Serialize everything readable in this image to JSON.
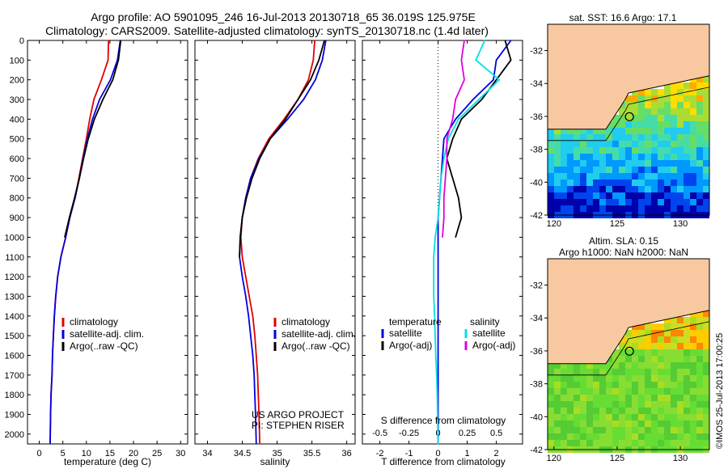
{
  "title": {
    "line1": "Argo profile: AO 5901095_246 16-Jul-2013 20130718_65 36.019S 125.975E",
    "line2": "Climatology: CARS2009. Satellite-adjusted climatology: synTS_20130718.nc (1.4d later)"
  },
  "colors": {
    "clim": "#e00000",
    "sat": "#0000e0",
    "argo": "#000000",
    "sal_sat": "#00e0e0",
    "sal_argo": "#e000e0"
  },
  "chart_data": [
    {
      "type": "line",
      "name": "temperature",
      "xlabel": "temperature (deg C)",
      "xticks": [
        0,
        5,
        10,
        15,
        20,
        25,
        30
      ],
      "xlim": [
        -2.5,
        31.5
      ],
      "ylim": [
        2050,
        0
      ],
      "yticks": [
        0,
        100,
        200,
        300,
        400,
        500,
        600,
        700,
        800,
        900,
        1000,
        1100,
        1200,
        1300,
        1400,
        1500,
        1600,
        1700,
        1800,
        1900,
        2000
      ],
      "legend": [
        "climatology",
        "satellite-adj. clim.",
        "Argo(..raw -QC)"
      ],
      "series": [
        {
          "key": "clim",
          "name": "climatology",
          "x": [
            14.7,
            14.6,
            13.2,
            11.6,
            10.7,
            10.0,
            9.2,
            8.4,
            7.6,
            6.4,
            5.6,
            4.6,
            3.9,
            3.5,
            3.2,
            3.0,
            2.8,
            2.7,
            2.5,
            2.4,
            2.3
          ],
          "y": [
            0,
            100,
            200,
            300,
            400,
            500,
            600,
            700,
            800,
            900,
            1000,
            1100,
            1200,
            1300,
            1400,
            1500,
            1600,
            1700,
            1800,
            1900,
            2050
          ]
        },
        {
          "key": "sat",
          "name": "satellite-adj. clim.",
          "x": [
            17.2,
            16.6,
            15.1,
            12.8,
            11.3,
            10.2,
            9.3,
            8.5,
            7.6,
            6.5,
            5.6,
            4.6,
            3.9,
            3.5,
            3.2,
            3.0,
            2.8,
            2.7,
            2.5,
            2.4,
            2.3
          ],
          "y": [
            0,
            100,
            200,
            300,
            400,
            500,
            600,
            700,
            800,
            900,
            1000,
            1100,
            1200,
            1300,
            1400,
            1500,
            1600,
            1700,
            1800,
            1900,
            2050
          ]
        },
        {
          "key": "argo",
          "name": "Argo(..raw -QC)",
          "x": [
            17.3,
            16.8,
            15.6,
            13.5,
            11.7,
            10.4,
            9.4,
            8.5,
            7.5,
            6.4,
            5.4
          ],
          "y": [
            0,
            100,
            200,
            300,
            400,
            500,
            600,
            700,
            800,
            900,
            1000
          ]
        }
      ]
    },
    {
      "type": "line",
      "name": "salinity",
      "xlabel": "salinity",
      "xticks": [
        34,
        34.5,
        35,
        35.5,
        36
      ],
      "xlim": [
        33.82,
        36.12
      ],
      "ylim": [
        2050,
        0
      ],
      "legend": [
        "climatology",
        "satellite-adj. clim.",
        "Argo(..raw -QC)"
      ],
      "annotation": [
        "US ARGO PROJECT",
        "PI: STEPHEN RISER"
      ],
      "series": [
        {
          "key": "clim",
          "name": "climatology",
          "x": [
            35.54,
            35.52,
            35.45,
            35.3,
            35.1,
            34.88,
            34.73,
            34.62,
            34.55,
            34.5,
            34.48,
            34.5,
            34.55,
            34.6,
            34.65,
            34.68,
            34.7,
            34.72,
            34.73,
            34.74,
            34.75
          ],
          "y": [
            0,
            100,
            200,
            300,
            400,
            500,
            600,
            700,
            800,
            900,
            1000,
            1100,
            1200,
            1300,
            1400,
            1500,
            1600,
            1700,
            1800,
            1900,
            2050
          ]
        },
        {
          "key": "sat",
          "name": "satellite-adj. clim.",
          "x": [
            35.7,
            35.65,
            35.55,
            35.38,
            35.15,
            34.9,
            34.74,
            34.62,
            34.55,
            34.5,
            34.47,
            34.46,
            34.5,
            34.55,
            34.59,
            34.62,
            34.65,
            34.67,
            34.68,
            34.69,
            34.7
          ],
          "y": [
            0,
            100,
            200,
            300,
            400,
            500,
            600,
            700,
            800,
            900,
            1000,
            1100,
            1200,
            1300,
            1400,
            1500,
            1600,
            1700,
            1800,
            1900,
            2050
          ]
        },
        {
          "key": "argo",
          "name": "Argo(..raw -QC)",
          "x": [
            35.68,
            35.6,
            35.48,
            35.3,
            35.12,
            34.9,
            34.75,
            34.64,
            34.56,
            34.5,
            34.47,
            34.46
          ],
          "y": [
            0,
            100,
            200,
            300,
            400,
            500,
            600,
            700,
            800,
            900,
            1000,
            1100
          ]
        }
      ]
    },
    {
      "type": "line",
      "name": "differences",
      "xlabel": "T difference from climatology",
      "xticks": [
        -2,
        -1,
        0,
        1,
        2
      ],
      "xlim": [
        -2.6,
        2.9
      ],
      "x2label": "S difference from climatology",
      "x2ticklabels": [
        "-0.5",
        "-0.25",
        "0",
        "0.25",
        "0.5"
      ],
      "ylim": [
        2050,
        0
      ],
      "legend_titles": [
        "temperature",
        "salinity"
      ],
      "legend": [
        "satellite",
        "Argo(-adj)",
        "satellite",
        "Argo(-adj)"
      ],
      "series": [
        {
          "key": "sat",
          "name": "temperature satellite",
          "x": [
            2.5,
            2.0,
            1.9,
            1.2,
            0.6,
            0.2,
            0.15,
            0.1,
            0.05,
            0.0,
            0.0,
            0.0,
            0.0,
            0.0,
            0.0,
            0.0,
            0.0,
            0.0,
            0.0,
            0.0,
            0.0
          ],
          "y": [
            0,
            100,
            200,
            300,
            400,
            500,
            600,
            700,
            800,
            900,
            1000,
            1100,
            1200,
            1300,
            1400,
            1500,
            1600,
            1700,
            1800,
            1900,
            2050
          ]
        },
        {
          "key": "argo",
          "name": "temperature Argo(-adj)",
          "x": [
            2.3,
            2.5,
            2.0,
            1.5,
            0.8,
            0.5,
            0.3,
            0.5,
            0.7,
            0.8,
            0.6
          ],
          "y": [
            0,
            100,
            200,
            300,
            400,
            500,
            600,
            700,
            800,
            900,
            1000
          ]
        },
        {
          "key": "sal_sat",
          "name": "salinity satellite",
          "x": [
            1.6,
            1.3,
            2.1,
            1.4,
            0.7,
            0.35,
            0.2,
            0.1,
            0.05,
            0.0,
            -0.1,
            -0.15,
            -0.15,
            -0.15,
            -0.12,
            -0.1,
            -0.08,
            -0.05,
            -0.03,
            -0.02,
            0.0
          ],
          "y": [
            0,
            100,
            200,
            300,
            400,
            500,
            600,
            700,
            800,
            900,
            1000,
            1100,
            1200,
            1300,
            1400,
            1500,
            1600,
            1700,
            1800,
            1900,
            2050
          ]
        },
        {
          "key": "sal_argo",
          "name": "salinity Argo(-adj)",
          "x": [
            0.9,
            0.8,
            0.9,
            0.6,
            0.5,
            0.3,
            0.3,
            0.25,
            0.2,
            0.2,
            0.15
          ],
          "y": [
            0,
            100,
            200,
            300,
            400,
            500,
            600,
            700,
            800,
            900,
            1000
          ]
        }
      ]
    },
    {
      "type": "heatmap",
      "name": "sst-map",
      "title": "sat. SST: 16.6 Argo: 17.1",
      "xticks": [
        120,
        125,
        130
      ],
      "yticks": [
        -32,
        -34,
        -36,
        -38,
        -40,
        -42
      ],
      "xlim": [
        119.5,
        132.3
      ],
      "ylim": [
        -42,
        -30.4
      ],
      "marker": {
        "lon": 125.975,
        "lat": -36.019
      }
    },
    {
      "type": "heatmap",
      "name": "sla-map",
      "title": "Altim. SLA: 0.15",
      "subtitle": "Argo h1000: NaN h2000: NaN",
      "xticks": [
        120,
        125,
        130
      ],
      "yticks": [
        -32,
        -34,
        -36,
        -38,
        -40,
        -42
      ],
      "xlim": [
        119.5,
        132.3
      ],
      "ylim": [
        -42,
        -30.4
      ],
      "marker": {
        "lon": 125.975,
        "lat": -36.019
      }
    }
  ],
  "footer": {
    "imos": "©IMOS 25-Jul-2013 17:00:25"
  }
}
